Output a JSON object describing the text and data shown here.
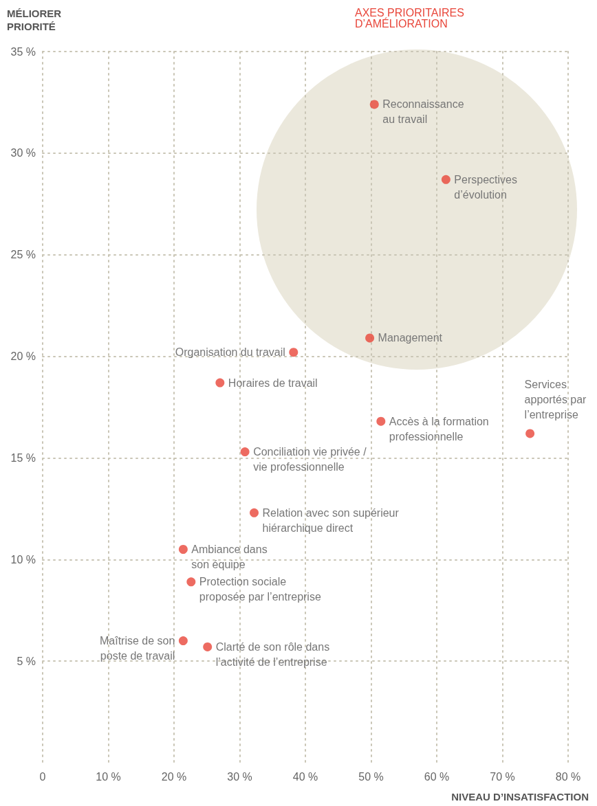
{
  "chart_data": {
    "type": "scatter",
    "xlabel": "NIVEAU D’INSATISFACTION",
    "ylabel": "MÉLIORER\nPRIORITÉ",
    "annotations": [
      "AXES PRIORITAIRES\nD’AMÉLIORATION",
      {
        "text": "Reconnaissance\nau travail",
        "x": 50.5,
        "y": 32.4
      },
      {
        "text": "Perspectives\nd’évolution",
        "x": 61.4,
        "y": 28.7
      },
      {
        "text": "Management",
        "x": 49.8,
        "y": 20.9
      },
      {
        "text": "Organisation du travail",
        "x": 38.2,
        "y": 20.2
      },
      {
        "text": "Horaires de travail",
        "x": 27.0,
        "y": 18.7
      },
      {
        "text": "Accès à la formation\nprofessionnelle",
        "x": 51.5,
        "y": 16.8
      },
      {
        "text": "Services\napportés par\nl’entreprise",
        "x": 74.2,
        "y": 16.2
      },
      {
        "text": "Conciliation vie privée /\nvie professionnelle",
        "x": 30.8,
        "y": 15.3
      },
      {
        "text": "Relation avec son supérieur\nhiérarchique direct",
        "x": 32.2,
        "y": 12.3
      },
      {
        "text": "Ambiance dans\nson équipe",
        "x": 21.4,
        "y": 10.5
      },
      {
        "text": "Protection sociale\nproposée par l’entreprise",
        "x": 22.6,
        "y": 8.9
      },
      {
        "text": "Maîtrise de son\nposte de travail",
        "x": 21.4,
        "y": 6.0
      },
      {
        "text": "Clarté de son rôle dans\nl’activité de l’entreprise",
        "x": 25.1,
        "y": 5.7
      }
    ],
    "x": [
      50.5,
      61.4,
      49.8,
      38.2,
      27.0,
      51.5,
      74.2,
      30.8,
      32.2,
      21.4,
      22.6,
      21.4,
      25.1
    ],
    "values": [
      32.4,
      28.7,
      20.9,
      20.2,
      18.7,
      16.8,
      16.2,
      15.3,
      12.3,
      10.5,
      8.9,
      6.0,
      5.7
    ],
    "color": "#e8463a",
    "marker": "circle",
    "grid": true,
    "xlim": [
      0,
      80
    ],
    "ylim": [
      0,
      35
    ],
    "xticks": [
      0,
      {
        "value": 10,
        "label": "10 %"
      },
      {
        "value": 20,
        "label": "20 %"
      },
      {
        "value": 30,
        "label": "30 %"
      },
      {
        "value": 40,
        "label": "40 %"
      },
      {
        "value": 50,
        "label": "50 %"
      },
      {
        "value": 60,
        "label": "60 %"
      },
      {
        "value": 70,
        "label": "70 %"
      },
      {
        "value": 80,
        "label": "80 %"
      }
    ],
    "yticks": [
      {
        "value": 5,
        "label": "5 %"
      },
      {
        "value": 10,
        "label": "10 %"
      },
      {
        "value": 15,
        "label": "15 %"
      },
      {
        "value": 20,
        "label": "20 %"
      },
      {
        "value": 25,
        "label": "25 %"
      },
      {
        "value": 30,
        "label": "30 %"
      },
      {
        "value": 35,
        "label": "35 %"
      }
    ]
  }
}
